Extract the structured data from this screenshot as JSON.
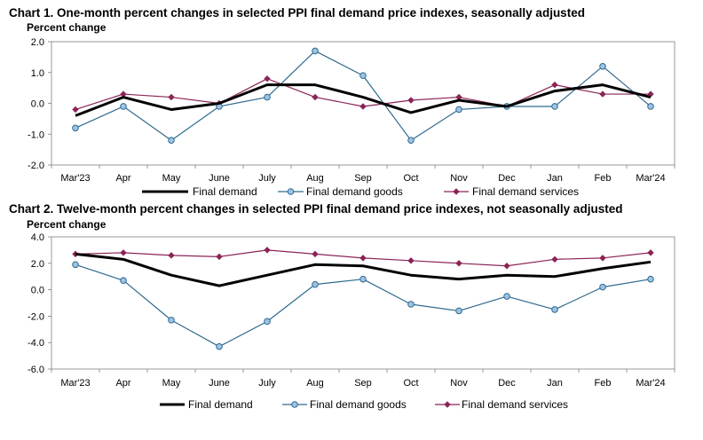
{
  "chart_data": [
    {
      "type": "line",
      "title": "Chart 1. One-month percent changes in selected PPI final demand price indexes, seasonally adjusted",
      "ylabel": "Percent change",
      "xlabel": "",
      "categories": [
        "Mar'23",
        "Apr",
        "May",
        "June",
        "July",
        "Aug",
        "Sep",
        "Oct",
        "Nov",
        "Dec",
        "Jan",
        "Feb",
        "Mar'24"
      ],
      "ylim": [
        -2.0,
        2.0
      ],
      "yticks": [
        "2.0",
        "1.0",
        "0.0",
        "-1.0",
        "-2.0"
      ],
      "ytick_values": [
        2.0,
        1.0,
        0.0,
        -1.0,
        -2.0
      ],
      "series": [
        {
          "name": "Final demand",
          "color": "#000000",
          "values": [
            -0.4,
            0.2,
            -0.2,
            0.0,
            0.6,
            0.6,
            0.2,
            -0.3,
            0.1,
            -0.1,
            0.4,
            0.6,
            0.2
          ]
        },
        {
          "name": "Final demand goods",
          "color": "#2e6a8e",
          "values": [
            -0.8,
            -0.1,
            -1.2,
            -0.1,
            0.2,
            1.7,
            0.9,
            -1.2,
            -0.2,
            -0.1,
            -0.1,
            1.2,
            -0.1
          ]
        },
        {
          "name": "Final demand services",
          "color": "#8b2457",
          "values": [
            -0.2,
            0.3,
            0.2,
            0.0,
            0.8,
            0.2,
            -0.1,
            0.1,
            0.2,
            -0.1,
            0.6,
            0.3,
            0.3
          ]
        }
      ],
      "legend": "bottom"
    },
    {
      "type": "line",
      "title": "Chart 2. Twelve-month percent changes in selected PPI final demand price indexes, not seasonally adjusted",
      "ylabel": "Percent change",
      "xlabel": "",
      "categories": [
        "Mar'23",
        "Apr",
        "May",
        "June",
        "July",
        "Aug",
        "Sep",
        "Oct",
        "Nov",
        "Dec",
        "Jan",
        "Feb",
        "Mar'24"
      ],
      "ylim": [
        -6.0,
        4.0
      ],
      "yticks": [
        "4.0",
        "2.0",
        "0.0",
        "-2.0",
        "-4.0",
        "-6.0"
      ],
      "ytick_values": [
        4.0,
        2.0,
        0.0,
        -2.0,
        -4.0,
        -6.0
      ],
      "series": [
        {
          "name": "Final demand",
          "color": "#000000",
          "values": [
            2.7,
            2.3,
            1.1,
            0.3,
            1.1,
            1.9,
            1.8,
            1.1,
            0.8,
            1.1,
            1.0,
            1.6,
            2.1
          ]
        },
        {
          "name": "Final demand goods",
          "color": "#2e6a8e",
          "values": [
            1.9,
            0.7,
            -2.3,
            -4.3,
            -2.4,
            0.4,
            0.8,
            -1.1,
            -1.6,
            -0.5,
            -1.5,
            0.2,
            0.8
          ]
        },
        {
          "name": "Final demand services",
          "color": "#8b2457",
          "values": [
            2.7,
            2.8,
            2.6,
            2.5,
            3.0,
            2.7,
            2.4,
            2.2,
            2.0,
            1.8,
            2.3,
            2.4,
            2.8
          ]
        }
      ],
      "legend": "bottom"
    }
  ]
}
